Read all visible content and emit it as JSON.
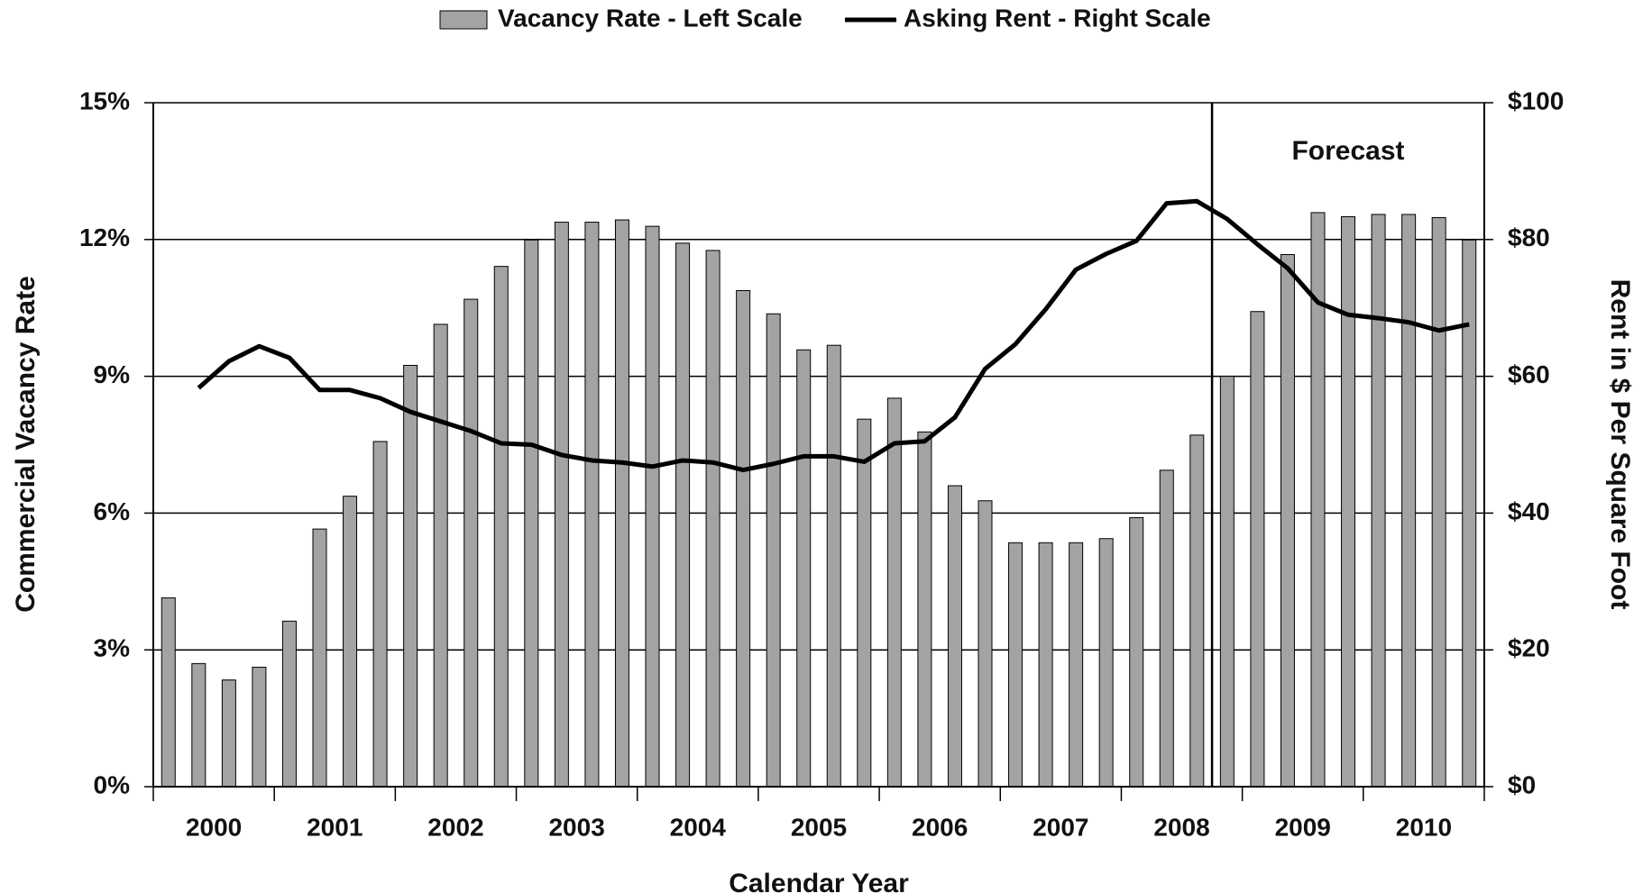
{
  "chart_data": {
    "type": "bar-line",
    "legend": "top",
    "y_axis_label": "Commercial Vacancy Rate",
    "y2_axis_label": "Rent in $ Per Square Foot",
    "x_axis_label": "Calendar Year",
    "annotation": "Forecast",
    "categories": [
      null,
      null,
      null,
      null,
      null,
      null,
      null,
      null,
      null,
      null,
      null,
      null,
      null,
      null,
      null,
      null,
      null,
      null,
      null,
      null,
      null,
      null,
      null,
      null,
      null,
      null,
      null,
      null,
      null,
      null,
      null,
      null,
      null,
      null,
      null,
      null,
      null,
      null,
      null,
      null,
      null,
      null,
      null,
      null
    ],
    "year_labels": [
      "2000",
      "2001",
      "2002",
      "2003",
      "2004",
      "2005",
      "2006",
      "2007",
      "2008",
      "2009",
      "2010"
    ],
    "ylim": [
      0,
      15
    ],
    "yticks": [
      {
        "value": 0,
        "label": "0%"
      },
      {
        "value": 3,
        "label": "3%"
      },
      {
        "value": 6,
        "label": "6%"
      },
      {
        "value": 9,
        "label": "9%"
      },
      {
        "value": 12,
        "label": "12%"
      },
      {
        "value": 15,
        "label": "15%"
      }
    ],
    "y2lim": [
      0,
      100
    ],
    "y2ticks": [
      {
        "value": 0,
        "label": "$0"
      },
      {
        "value": 20,
        "label": "$20"
      },
      {
        "value": 40,
        "label": "$40"
      },
      {
        "value": 60,
        "label": "$60"
      },
      {
        "value": 80,
        "label": "$80"
      },
      {
        "value": 100,
        "label": "$100"
      }
    ],
    "grid": true,
    "series": [
      {
        "name": "Vacancy Rate - Left Scale",
        "type": "bar",
        "color": "#a3a3a3",
        "values": [
          4.14,
          2.7,
          2.34,
          2.62,
          3.63,
          5.65,
          6.37,
          7.57,
          9.24,
          10.14,
          10.69,
          11.41,
          11.99,
          12.38,
          12.38,
          12.43,
          12.29,
          11.92,
          11.76,
          10.88,
          10.37,
          9.58,
          9.68,
          8.06,
          8.52,
          7.78,
          6.6,
          6.27,
          5.35,
          5.35,
          5.35,
          5.44,
          5.9,
          6.94,
          7.71,
          9.0,
          10.42,
          11.67,
          12.59,
          12.5,
          12.55,
          12.55,
          12.48,
          11.99
        ]
      },
      {
        "name": "Asking Rent - Right Scale",
        "type": "line",
        "axis": "y2",
        "color": "#000000",
        "values": [
          null,
          58.3,
          62.2,
          64.4,
          62.7,
          58.0,
          58.0,
          56.8,
          54.8,
          53.4,
          52.0,
          50.2,
          50.0,
          48.5,
          47.7,
          47.4,
          46.8,
          47.7,
          47.4,
          46.3,
          47.2,
          48.3,
          48.3,
          47.5,
          50.2,
          50.5,
          54.0,
          61.1,
          64.7,
          69.8,
          75.6,
          77.9,
          79.8,
          85.3,
          85.6,
          83.0,
          79.3,
          75.8,
          70.8,
          69.0,
          68.5,
          67.9,
          66.7,
          67.6
        ]
      }
    ]
  }
}
